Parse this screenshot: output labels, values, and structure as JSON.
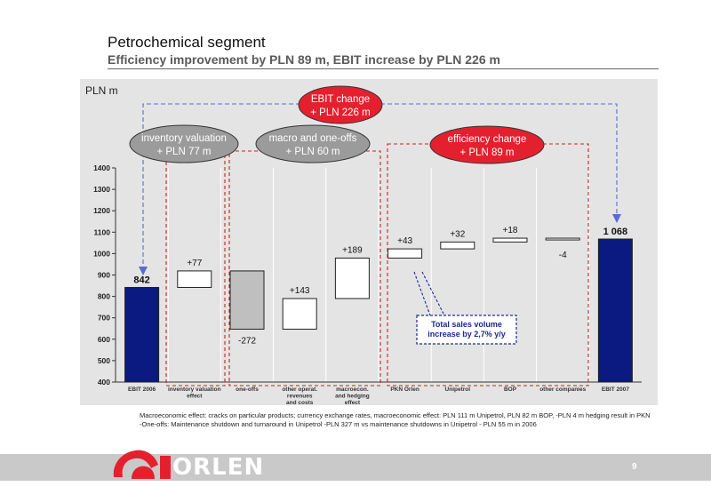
{
  "header": {
    "title": "Petrochemical segment",
    "subtitle": "Efficiency improvement by PLN 89 m, EBIT increase by PLN 226 m"
  },
  "unit_label": "PLN m",
  "bubbles": {
    "ebit_change": [
      "EBIT change",
      "+ PLN 226 m"
    ],
    "inventory": [
      "inventory valuation",
      "+ PLN 77 m"
    ],
    "macro": [
      "macro and one-offs",
      "+ PLN 60 m"
    ],
    "efficiency": [
      "efficiency change",
      "+ PLN 89 m"
    ]
  },
  "callout": [
    "Total sales volume",
    "increase by 2,7% y/y"
  ],
  "chart_data": {
    "type": "bar",
    "subtype": "waterfall",
    "ylim": [
      400,
      1400
    ],
    "yticks": [
      400,
      500,
      600,
      700,
      800,
      900,
      1000,
      1100,
      1200,
      1300,
      1400
    ],
    "categories": [
      [
        "EBIT 2006"
      ],
      [
        "inventory valuation",
        "effect"
      ],
      [
        "one-offs"
      ],
      [
        "other operat.",
        "revenues",
        "and costs"
      ],
      [
        "macroecon.",
        "and hedging",
        "effect"
      ],
      [
        "PKN Orlen"
      ],
      [
        "Unipetrol"
      ],
      [
        "BOP"
      ],
      [
        "other companies"
      ],
      [
        "EBIT 2007"
      ]
    ],
    "bars": [
      {
        "kind": "total",
        "start": 400,
        "end": 842,
        "label": "842",
        "color": "#0a1a80"
      },
      {
        "kind": "delta",
        "start": 842,
        "end": 919,
        "label": "+77",
        "color": "#ffffff"
      },
      {
        "kind": "delta",
        "start": 919,
        "end": 647,
        "label": "-272",
        "color": "#bfbfbf"
      },
      {
        "kind": "delta",
        "start": 647,
        "end": 790,
        "label": "+143",
        "color": "#ffffff"
      },
      {
        "kind": "delta",
        "start": 790,
        "end": 979,
        "label": "+189",
        "color": "#ffffff"
      },
      {
        "kind": "delta",
        "start": 979,
        "end": 1022,
        "label": "+43",
        "color": "#ffffff"
      },
      {
        "kind": "delta",
        "start": 1022,
        "end": 1054,
        "label": "+32",
        "color": "#ffffff"
      },
      {
        "kind": "delta",
        "start": 1054,
        "end": 1072,
        "label": "+18",
        "color": "#ffffff"
      },
      {
        "kind": "delta",
        "start": 1072,
        "end": 1068,
        "label": "-4",
        "color": "#ffffff"
      },
      {
        "kind": "total",
        "start": 400,
        "end": 1068,
        "label": "1 068",
        "color": "#0a1a80"
      }
    ],
    "grid": true
  },
  "notes": [
    "Macroeconomic effect: cracks on particular products; currency exchange rates, macroeconomic effect: PLN 111 m Unipetrol, PLN 82 m BOP, -PLN  4 m hedging result in PKN",
    "-One-offs: Maintenance shutdown and turnaround in Unipetrol -PLN 327 m vs maintenance shutdowns in Unipetrol - PLN 55 m in 2006"
  ],
  "footer": {
    "logo_text": "ORLEN",
    "page_number": "9",
    "colors": {
      "band": "#c9c9c9",
      "brand_red": "#e4202e"
    }
  }
}
